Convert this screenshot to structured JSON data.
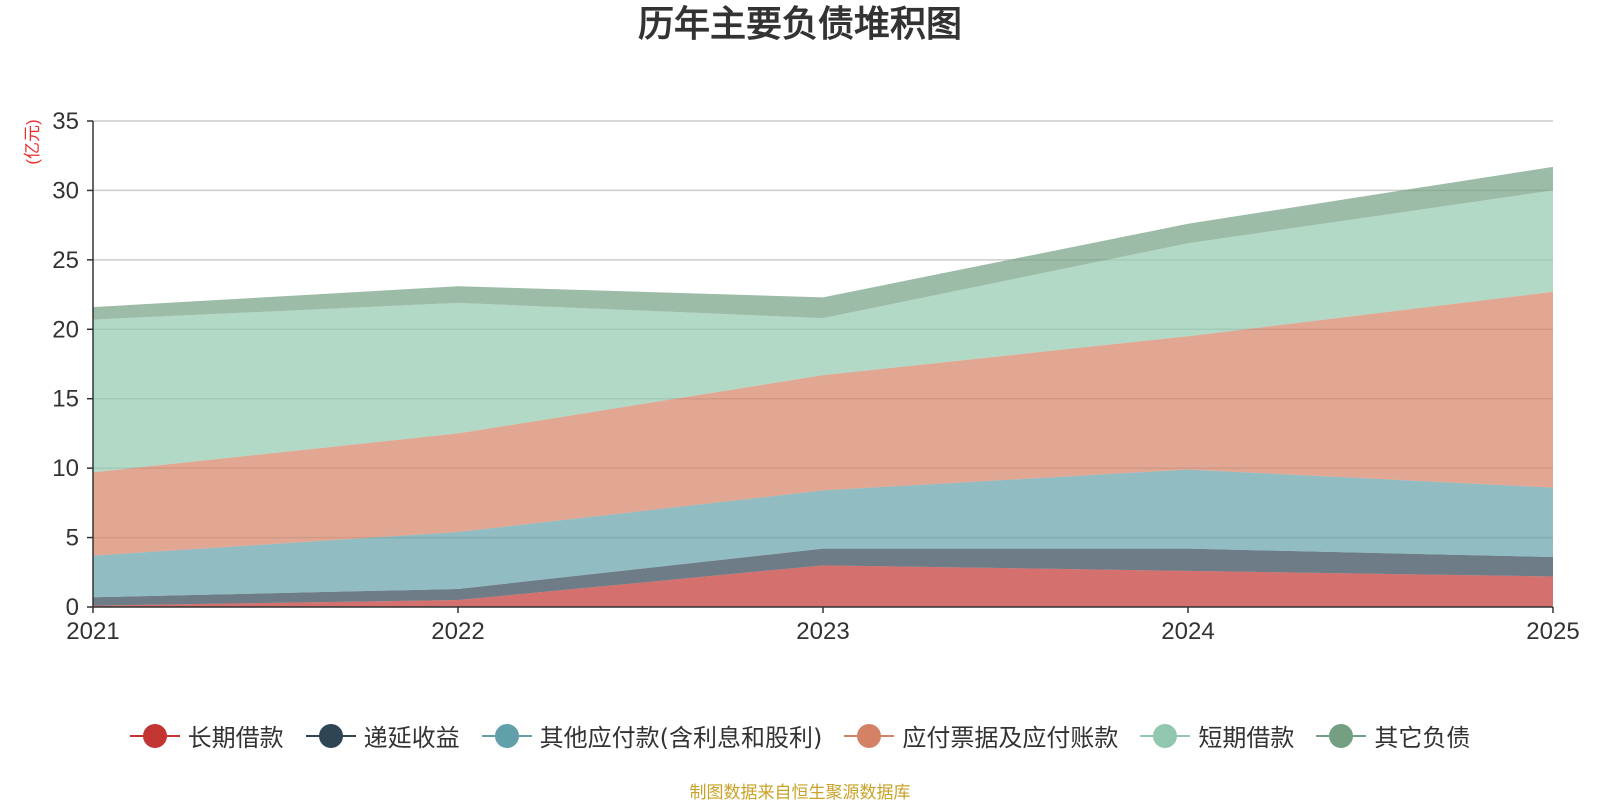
{
  "chart_data": {
    "type": "area",
    "stacked": true,
    "title": "历年主要负债堆积图",
    "ylabel": "(亿元)",
    "xlabel": "",
    "x": [
      "2021",
      "2022",
      "2023",
      "2024",
      "2025"
    ],
    "ylim": [
      0,
      35
    ],
    "yticks": [
      0,
      5,
      10,
      15,
      20,
      25,
      30,
      35
    ],
    "grid": true,
    "legend_position": "bottom",
    "series": [
      {
        "name": "长期借款",
        "color": "#c23531",
        "values": [
          0.1,
          0.5,
          3.0,
          2.6,
          2.2
        ]
      },
      {
        "name": "递延收益",
        "color": "#2f4554",
        "values": [
          0.6,
          0.8,
          1.2,
          1.6,
          1.4
        ]
      },
      {
        "name": "其他应付款(含利息和股利)",
        "color": "#61a0a8",
        "values": [
          3.0,
          4.1,
          4.2,
          5.7,
          5.0
        ]
      },
      {
        "name": "应付票据及应付账款",
        "color": "#d48265",
        "values": [
          6.0,
          7.1,
          8.3,
          9.6,
          14.1
        ]
      },
      {
        "name": "短期借款",
        "color": "#91c7ae",
        "values": [
          11.0,
          9.4,
          4.1,
          6.7,
          7.3
        ]
      },
      {
        "name": "其它负债",
        "color": "#749f83",
        "values": [
          0.9,
          1.2,
          1.5,
          1.4,
          1.7
        ]
      }
    ]
  },
  "footer": {
    "source": "制图数据来自恒生聚源数据库"
  }
}
